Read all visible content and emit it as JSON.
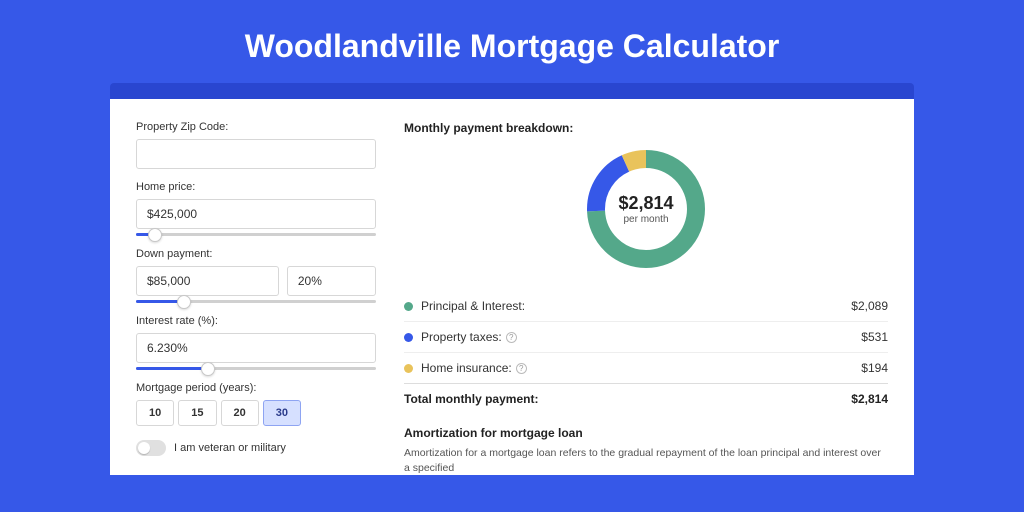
{
  "page": {
    "title": "Woodlandville Mortgage Calculator",
    "background_color": "#3658e8",
    "band_color": "#2946d0",
    "card_color": "#ffffff"
  },
  "form": {
    "zip": {
      "label": "Property Zip Code:",
      "value": ""
    },
    "home_price": {
      "label": "Home price:",
      "value": "$425,000",
      "slider_pct": 8
    },
    "down_payment": {
      "label": "Down payment:",
      "value": "$85,000",
      "pct_value": "20%",
      "slider_pct": 20
    },
    "interest": {
      "label": "Interest rate (%):",
      "value": "6.230%",
      "slider_pct": 30
    },
    "period": {
      "label": "Mortgage period (years):",
      "options": [
        "10",
        "15",
        "20",
        "30"
      ],
      "selected": "30"
    },
    "veteran": {
      "label": "I am veteran or military",
      "checked": false
    }
  },
  "breakdown": {
    "title": "Monthly payment breakdown:",
    "donut": {
      "center_amount": "$2,814",
      "center_sub": "per month",
      "slices": [
        {
          "key": "principal_interest",
          "value": 2089,
          "color": "#54a88a"
        },
        {
          "key": "property_taxes",
          "value": 531,
          "color": "#3658e8"
        },
        {
          "key": "home_insurance",
          "value": 194,
          "color": "#e9c35b"
        }
      ]
    },
    "items": [
      {
        "label": "Principal & Interest:",
        "value": "$2,089",
        "color": "#54a88a",
        "info": false
      },
      {
        "label": "Property taxes:",
        "value": "$531",
        "color": "#3658e8",
        "info": true
      },
      {
        "label": "Home insurance:",
        "value": "$194",
        "color": "#e9c35b",
        "info": true
      }
    ],
    "total": {
      "label": "Total monthly payment:",
      "value": "$2,814"
    }
  },
  "amortization": {
    "title": "Amortization for mortgage loan",
    "text": "Amortization for a mortgage loan refers to the gradual repayment of the loan principal and interest over a specified"
  }
}
